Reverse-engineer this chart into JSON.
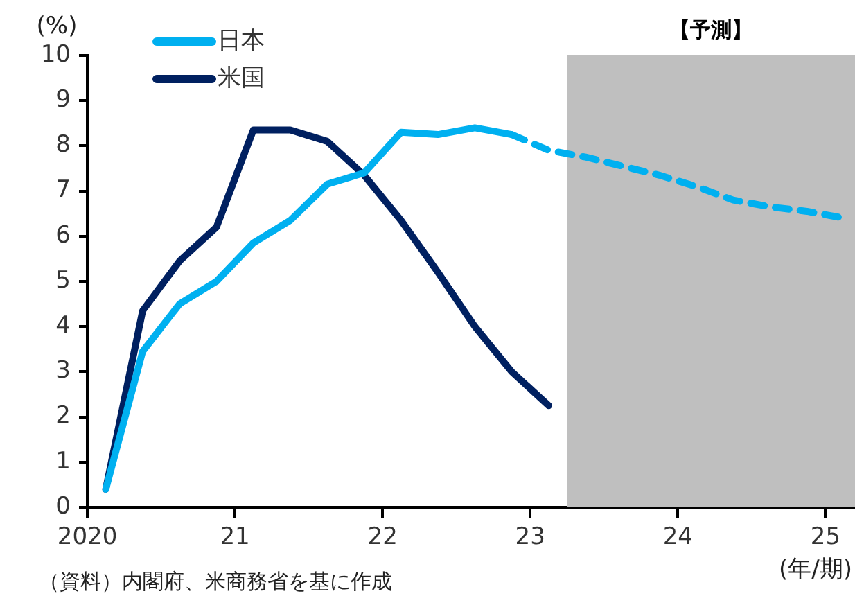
{
  "chart_data": {
    "type": "line",
    "ylabel": "(%)",
    "xlabel": "(年/期)",
    "x": [
      2020.125,
      2020.375,
      2020.625,
      2020.875,
      2021.125,
      2021.375,
      2021.625,
      2021.875,
      2022.125,
      2022.375,
      2022.625,
      2022.875,
      2023.125,
      2023.375,
      2023.625,
      2023.875,
      2024.125,
      2024.375,
      2024.625,
      2024.875,
      2025.125
    ],
    "series": [
      {
        "name": "日本",
        "color": "#00b0f0",
        "line_style": "solid",
        "values": [
          0.4,
          3.45,
          4.5,
          5.0,
          5.85,
          6.35,
          7.15,
          7.4,
          8.3,
          8.25,
          8.4,
          8.25,
          null,
          null,
          null,
          null,
          null,
          null,
          null,
          null,
          null
        ]
      },
      {
        "color": "#00b0f0",
        "line_style": "dashed",
        "values": [
          null,
          null,
          null,
          null,
          null,
          null,
          null,
          null,
          null,
          null,
          null,
          8.25,
          7.9,
          7.75,
          7.55,
          7.35,
          7.1,
          6.8,
          6.65,
          6.55,
          6.4
        ]
      },
      {
        "name": "米国",
        "color": "#002060",
        "line_style": "solid",
        "values": [
          0.4,
          4.35,
          5.45,
          6.2,
          8.35,
          8.35,
          8.1,
          7.35,
          6.35,
          5.2,
          4.0,
          3.0,
          2.25,
          null,
          null,
          null,
          null,
          null,
          null,
          null,
          null
        ]
      }
    ],
    "xlim": [
      2020,
      2025.2
    ],
    "xticks": [
      {
        "value": 2020,
        "label": "2020"
      },
      {
        "value": 2021,
        "label": "21"
      },
      {
        "value": 2022,
        "label": "22"
      },
      {
        "value": 2023,
        "label": "23"
      },
      {
        "value": 2024,
        "label": "24"
      },
      {
        "value": 2025,
        "label": "25"
      }
    ],
    "ylim": [
      0,
      10
    ],
    "yticks": [
      0,
      1,
      2,
      3,
      4,
      5,
      6,
      7,
      8,
      9,
      10
    ],
    "bands": [
      {
        "axis": "x",
        "from": 2023.25,
        "to": 2025.2,
        "label": "【予測】",
        "color": "#bfbfbf"
      }
    ],
    "legend": "top left",
    "annotations": [
      "（資料）内閣府、米商務省を基に作成"
    ]
  }
}
